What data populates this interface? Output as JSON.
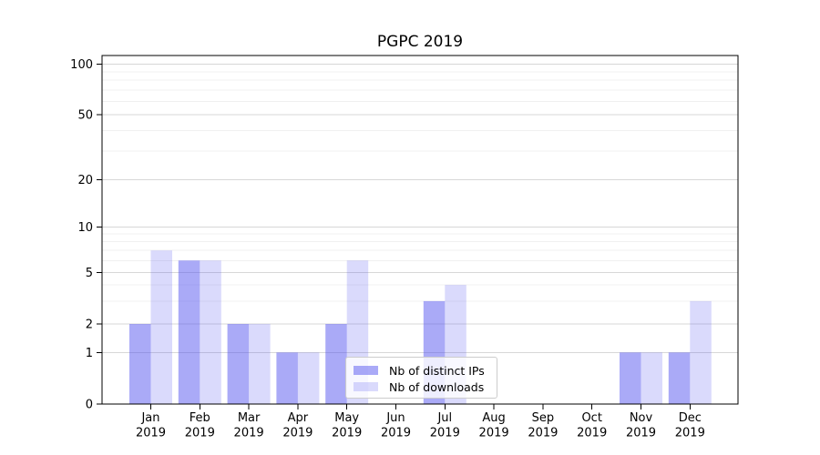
{
  "title": "PGPC 2019",
  "chart_data": {
    "type": "bar",
    "title": "PGPC 2019",
    "categories": [
      "Jan",
      "Feb",
      "Mar",
      "Apr",
      "May",
      "Jun",
      "Jul",
      "Aug",
      "Sep",
      "Oct",
      "Nov",
      "Dec"
    ],
    "category_year": "2019",
    "series": [
      {
        "name": "Nb of distinct IPs",
        "color": "rgba(85,85,240,0.50)",
        "values": [
          2,
          6,
          2,
          1,
          2,
          0,
          3,
          0,
          0,
          0,
          1,
          1
        ]
      },
      {
        "name": "Nb of downloads",
        "color": "rgba(85,85,240,0.22)",
        "values": [
          7,
          6,
          2,
          1,
          6,
          0,
          4,
          0,
          0,
          0,
          1,
          3
        ]
      }
    ],
    "yscale": "symlog",
    "yticks": [
      0,
      1,
      2,
      5,
      10,
      20,
      50,
      100
    ],
    "minor_yticks": [
      3,
      4,
      6,
      7,
      8,
      9,
      30,
      40,
      60,
      70,
      80,
      90
    ],
    "ylim": [
      0,
      146
    ],
    "xlabel": "",
    "ylabel": "",
    "grid": true,
    "legend_position": "lower center"
  },
  "colors": {
    "grid_major": "#d7d7d7",
    "grid_minor": "#f0f0f0",
    "axis": "#000000",
    "text": "#000000",
    "legend_border": "#cccccc",
    "legend_bg": "#ffffff"
  }
}
